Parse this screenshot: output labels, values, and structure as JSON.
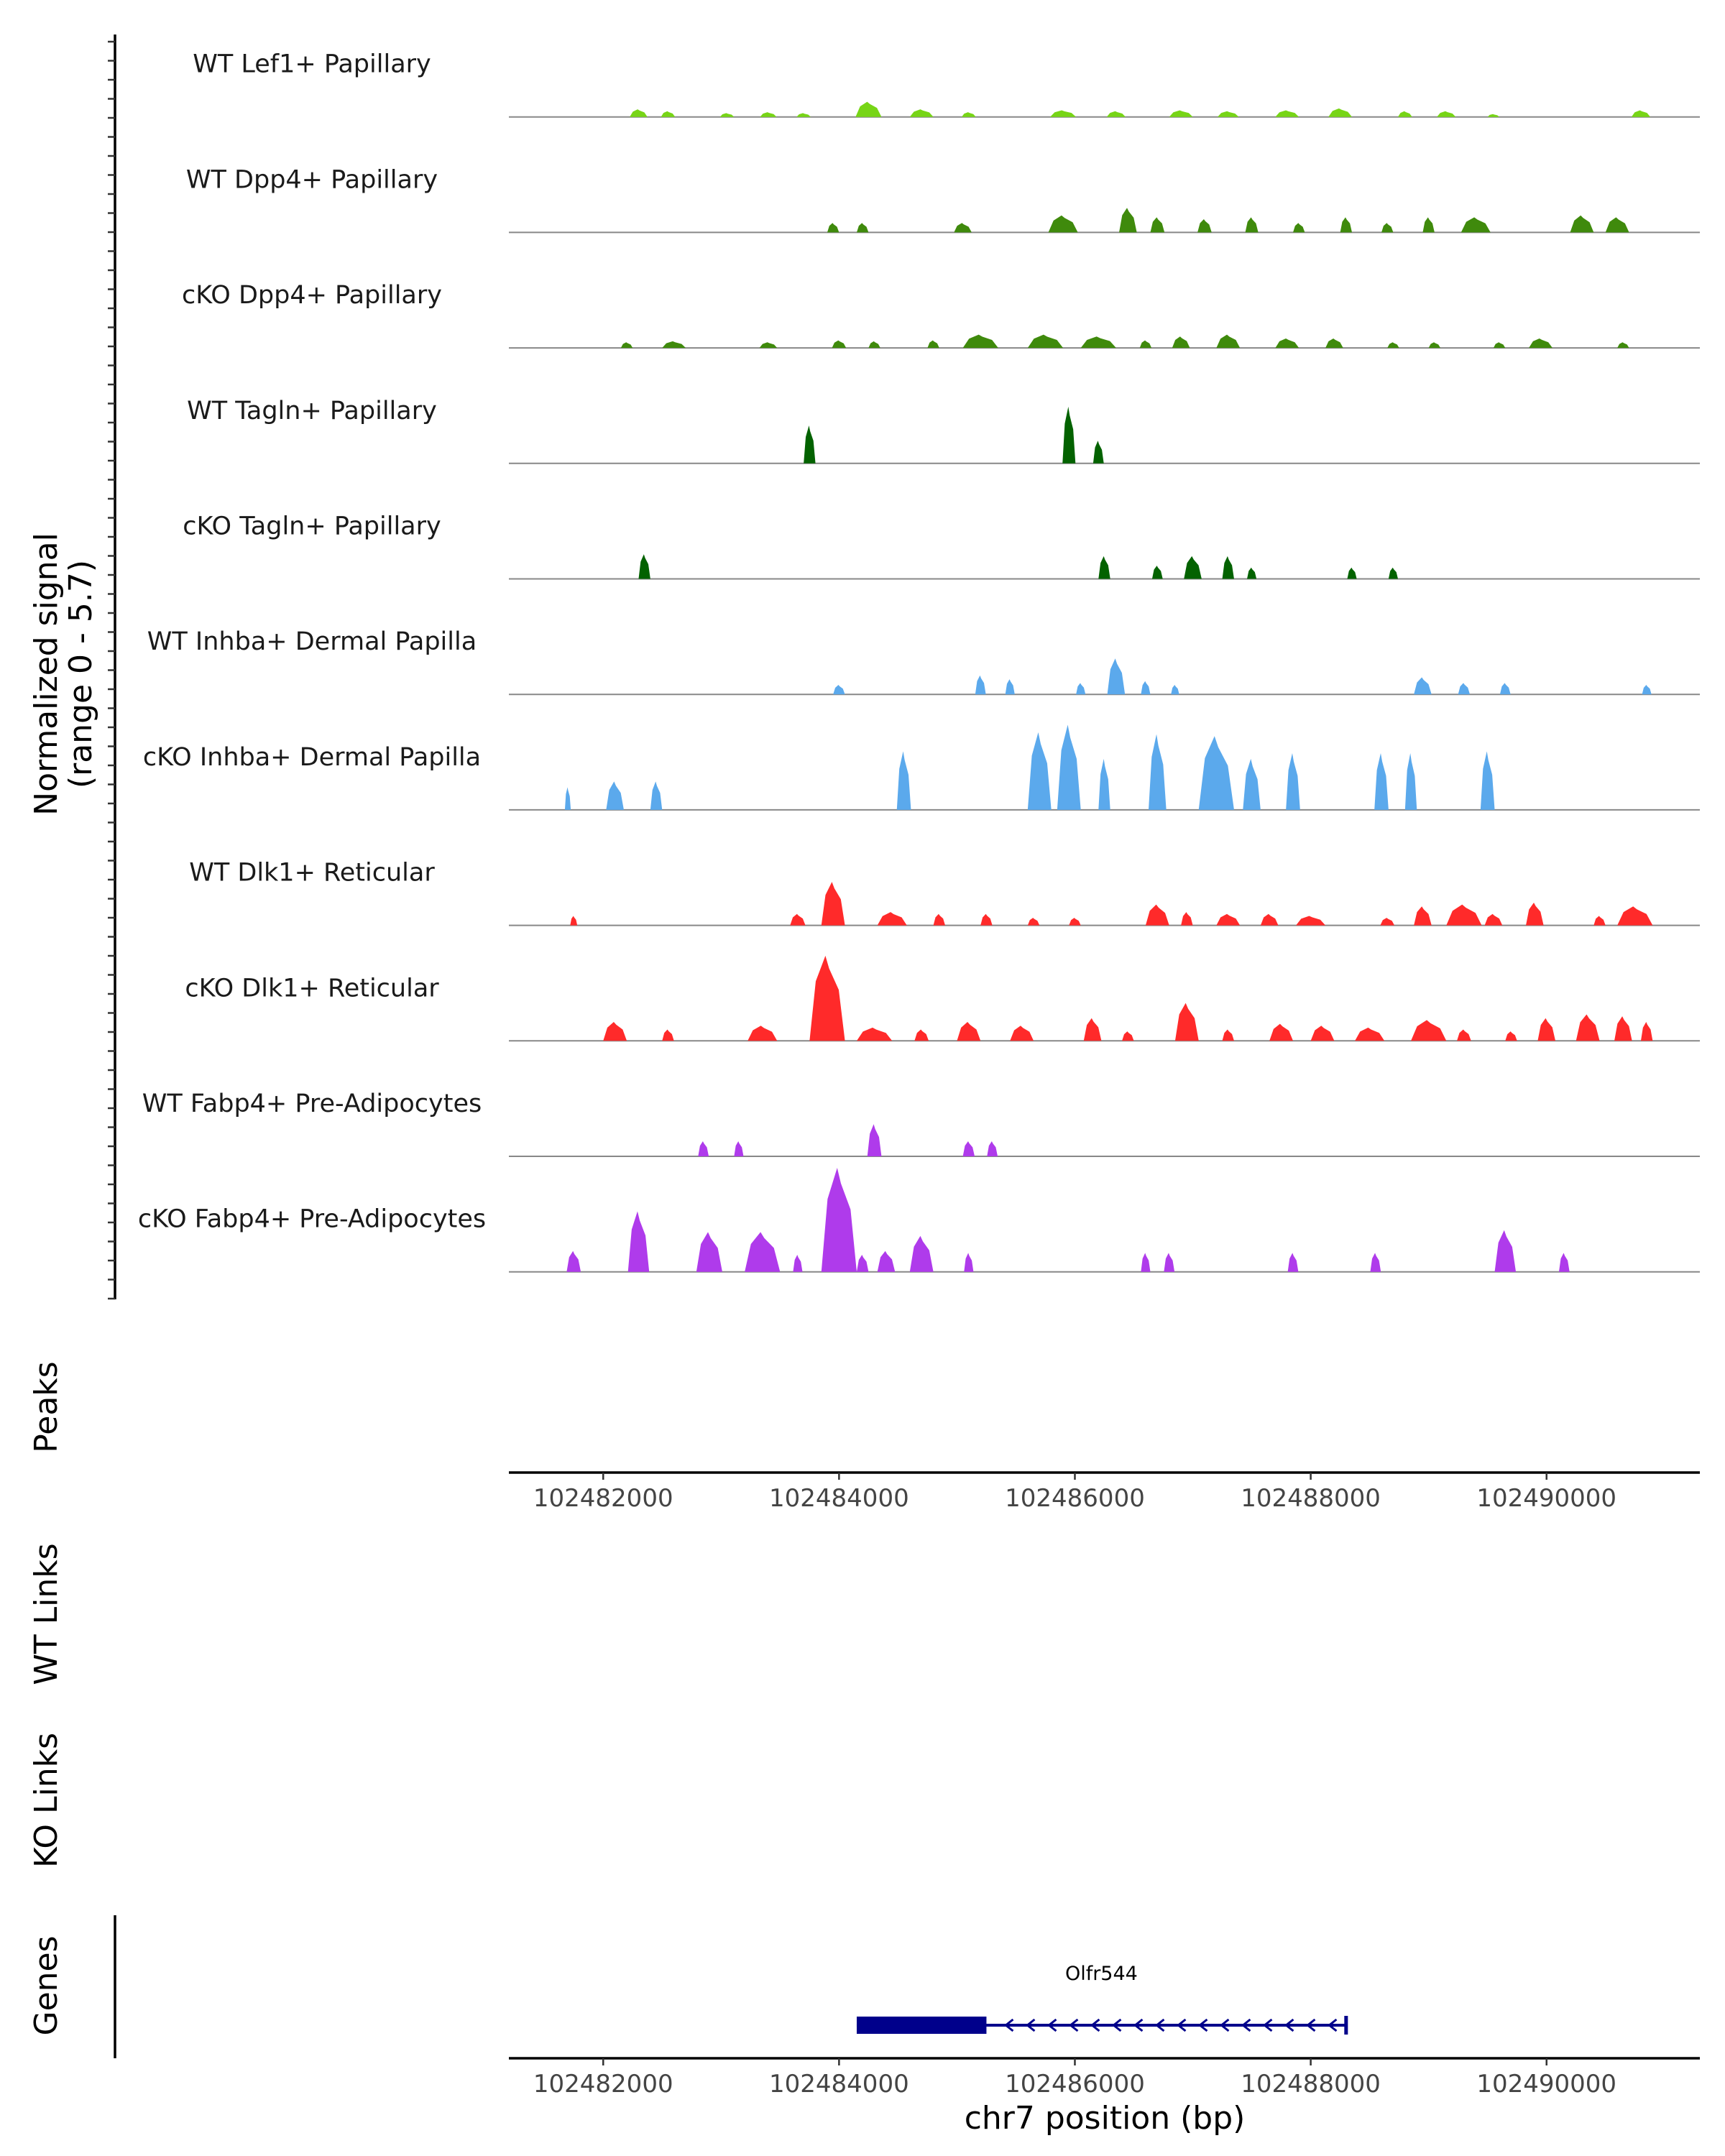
{
  "chart_data": {
    "type": "area",
    "title": "",
    "ylabel_line1": "Normalized signal",
    "ylabel_line2": "(range 0 - 5.7)",
    "yrange": [
      0,
      5.7
    ],
    "xlabel": "chr7 position (bp)",
    "xlim": [
      102481200,
      102491300
    ],
    "x_ticks": [
      102482000,
      102484000,
      102486000,
      102488000,
      102490000
    ],
    "x_tick_labels": [
      "102482000",
      "102484000",
      "102486000",
      "102488000",
      "102490000"
    ],
    "side_labels": {
      "peaks": "Peaks",
      "wt_links": "WT Links",
      "ko_links": "KO Links",
      "genes": "Genes"
    },
    "tracks": [
      {
        "name": "WT Lef1+ Papillary",
        "color": "#77d516",
        "peaks": [
          [
            102482300,
            0.4,
            150
          ],
          [
            102482550,
            0.3,
            120
          ],
          [
            102483050,
            0.2,
            120
          ],
          [
            102483400,
            0.25,
            140
          ],
          [
            102483700,
            0.2,
            120
          ],
          [
            102484250,
            0.8,
            220
          ],
          [
            102484700,
            0.4,
            200
          ],
          [
            102485100,
            0.25,
            120
          ],
          [
            102485900,
            0.35,
            220
          ],
          [
            102486350,
            0.3,
            160
          ],
          [
            102486900,
            0.35,
            200
          ],
          [
            102487300,
            0.3,
            180
          ],
          [
            102487800,
            0.35,
            200
          ],
          [
            102488250,
            0.45,
            200
          ],
          [
            102488800,
            0.3,
            120
          ],
          [
            102489150,
            0.3,
            160
          ],
          [
            102489550,
            0.15,
            100
          ],
          [
            102490800,
            0.35,
            160
          ]
        ]
      },
      {
        "name": "WT Dpp4+ Papillary",
        "color": "#3f8a0c",
        "peaks": [
          [
            102483950,
            0.5,
            100
          ],
          [
            102484200,
            0.5,
            100
          ],
          [
            102485050,
            0.5,
            150
          ],
          [
            102485900,
            0.9,
            250
          ],
          [
            102486450,
            1.3,
            150
          ],
          [
            102486700,
            0.8,
            120
          ],
          [
            102487100,
            0.7,
            120
          ],
          [
            102487500,
            0.8,
            110
          ],
          [
            102487900,
            0.5,
            100
          ],
          [
            102488300,
            0.8,
            100
          ],
          [
            102488650,
            0.5,
            100
          ],
          [
            102489000,
            0.8,
            100
          ],
          [
            102489400,
            0.8,
            250
          ],
          [
            102490300,
            0.9,
            200
          ],
          [
            102490600,
            0.8,
            200
          ]
        ]
      },
      {
        "name": "cKO Dpp4+ Papillary",
        "color": "#3f8a0c",
        "peaks": [
          [
            102482200,
            0.3,
            100
          ],
          [
            102482600,
            0.35,
            200
          ],
          [
            102483400,
            0.3,
            150
          ],
          [
            102484000,
            0.4,
            120
          ],
          [
            102484300,
            0.35,
            100
          ],
          [
            102484800,
            0.4,
            100
          ],
          [
            102485200,
            0.7,
            300
          ],
          [
            102485750,
            0.7,
            300
          ],
          [
            102486200,
            0.6,
            300
          ],
          [
            102486600,
            0.4,
            100
          ],
          [
            102486900,
            0.6,
            150
          ],
          [
            102487300,
            0.7,
            200
          ],
          [
            102487800,
            0.5,
            200
          ],
          [
            102488200,
            0.5,
            150
          ],
          [
            102488700,
            0.3,
            100
          ],
          [
            102489050,
            0.3,
            100
          ],
          [
            102489600,
            0.3,
            100
          ],
          [
            102489950,
            0.5,
            200
          ],
          [
            102490650,
            0.3,
            100
          ]
        ]
      },
      {
        "name": "WT Tagln+ Papillary",
        "color": "#036200",
        "peaks": [
          [
            102483750,
            2.0,
            100
          ],
          [
            102485950,
            3.0,
            110
          ],
          [
            102486200,
            1.2,
            90
          ]
        ]
      },
      {
        "name": "cKO Tagln+ Papillary",
        "color": "#036200",
        "peaks": [
          [
            102482350,
            1.3,
            100
          ],
          [
            102486250,
            1.2,
            100
          ],
          [
            102486700,
            0.7,
            90
          ],
          [
            102487000,
            1.2,
            150
          ],
          [
            102487300,
            1.2,
            100
          ],
          [
            102487500,
            0.6,
            80
          ],
          [
            102488350,
            0.6,
            80
          ],
          [
            102488700,
            0.6,
            80
          ]
        ]
      },
      {
        "name": "WT Inhba+ Dermal Papilla",
        "color": "#5ba9ec",
        "peaks": [
          [
            102484000,
            0.5,
            100
          ],
          [
            102485200,
            1.0,
            90
          ],
          [
            102485450,
            0.8,
            80
          ],
          [
            102486050,
            0.6,
            80
          ],
          [
            102486350,
            1.9,
            150
          ],
          [
            102486600,
            0.7,
            80
          ],
          [
            102486850,
            0.5,
            70
          ],
          [
            102488950,
            0.9,
            150
          ],
          [
            102489300,
            0.6,
            100
          ],
          [
            102489650,
            0.6,
            90
          ],
          [
            102490850,
            0.5,
            80
          ]
        ]
      },
      {
        "name": "cKO Inhba+ Dermal Papilla",
        "color": "#5ba9ec",
        "peaks": [
          [
            102481700,
            1.2,
            50
          ],
          [
            102482100,
            1.5,
            150
          ],
          [
            102482450,
            1.5,
            100
          ],
          [
            102484550,
            3.1,
            120
          ],
          [
            102485700,
            4.1,
            200
          ],
          [
            102485950,
            4.5,
            200
          ],
          [
            102486250,
            2.7,
            100
          ],
          [
            102486700,
            4.0,
            150
          ],
          [
            102487200,
            3.9,
            300
          ],
          [
            102487500,
            2.7,
            150
          ],
          [
            102487850,
            3.0,
            120
          ],
          [
            102488600,
            3.0,
            120
          ],
          [
            102488850,
            3.0,
            100
          ],
          [
            102489500,
            3.1,
            120
          ]
        ]
      },
      {
        "name": "WT Dlk1+ Reticular",
        "color": "#ff2a2a",
        "peaks": [
          [
            102481750,
            0.5,
            60
          ],
          [
            102483650,
            0.6,
            130
          ],
          [
            102483950,
            2.3,
            200
          ],
          [
            102484450,
            0.7,
            250
          ],
          [
            102484850,
            0.6,
            100
          ],
          [
            102485250,
            0.6,
            100
          ],
          [
            102485650,
            0.4,
            100
          ],
          [
            102486000,
            0.4,
            100
          ],
          [
            102486700,
            1.1,
            200
          ],
          [
            102486950,
            0.7,
            100
          ],
          [
            102487300,
            0.6,
            200
          ],
          [
            102487650,
            0.6,
            150
          ],
          [
            102488000,
            0.5,
            250
          ],
          [
            102488650,
            0.4,
            120
          ],
          [
            102488950,
            1.0,
            150
          ],
          [
            102489300,
            1.1,
            300
          ],
          [
            102489550,
            0.6,
            150
          ],
          [
            102489900,
            1.2,
            150
          ],
          [
            102490450,
            0.5,
            100
          ],
          [
            102490750,
            1.0,
            300
          ]
        ]
      },
      {
        "name": "cKO Dlk1+ Reticular",
        "color": "#ff2a2a",
        "peaks": [
          [
            102482100,
            1.0,
            200
          ],
          [
            102482550,
            0.6,
            100
          ],
          [
            102483350,
            0.8,
            250
          ],
          [
            102483900,
            4.5,
            300
          ],
          [
            102484300,
            0.7,
            300
          ],
          [
            102484700,
            0.6,
            120
          ],
          [
            102485100,
            1.0,
            200
          ],
          [
            102485550,
            0.8,
            200
          ],
          [
            102486150,
            1.2,
            150
          ],
          [
            102486450,
            0.5,
            100
          ],
          [
            102486950,
            2.0,
            200
          ],
          [
            102487300,
            0.6,
            100
          ],
          [
            102487750,
            0.9,
            200
          ],
          [
            102488100,
            0.8,
            200
          ],
          [
            102488500,
            0.7,
            250
          ],
          [
            102489000,
            1.1,
            300
          ],
          [
            102489300,
            0.6,
            120
          ],
          [
            102489700,
            0.5,
            100
          ],
          [
            102490000,
            1.2,
            150
          ],
          [
            102490350,
            1.4,
            200
          ],
          [
            102490650,
            1.3,
            150
          ],
          [
            102490850,
            1.0,
            100
          ]
        ]
      },
      {
        "name": "WT Fabp4+ Pre-Adipocytes",
        "color": "#af3beb",
        "peaks": [
          [
            102482850,
            0.8,
            90
          ],
          [
            102483150,
            0.8,
            80
          ],
          [
            102484300,
            1.7,
            120
          ],
          [
            102485100,
            0.8,
            100
          ],
          [
            102485300,
            0.8,
            90
          ]
        ]
      },
      {
        "name": "cKO Fabp4+ Pre-Adipocytes",
        "color": "#af3beb",
        "peaks": [
          [
            102481750,
            1.1,
            120
          ],
          [
            102482300,
            3.2,
            180
          ],
          [
            102482900,
            2.1,
            220
          ],
          [
            102483350,
            2.1,
            300
          ],
          [
            102483650,
            0.9,
            80
          ],
          [
            102484000,
            5.5,
            300
          ],
          [
            102484200,
            0.9,
            100
          ],
          [
            102484400,
            1.1,
            150
          ],
          [
            102484700,
            1.9,
            200
          ],
          [
            102485100,
            1.0,
            80
          ],
          [
            102486600,
            1.0,
            80
          ],
          [
            102486800,
            1.0,
            90
          ],
          [
            102487850,
            1.0,
            90
          ],
          [
            102488550,
            1.0,
            90
          ],
          [
            102489650,
            2.2,
            180
          ],
          [
            102490150,
            1.0,
            90
          ]
        ]
      }
    ],
    "gene": {
      "name": "Olfr544",
      "color": "#00008b",
      "exon": [
        102484150,
        102485250
      ],
      "span": [
        102484150,
        102488300
      ],
      "strand": "-"
    }
  }
}
